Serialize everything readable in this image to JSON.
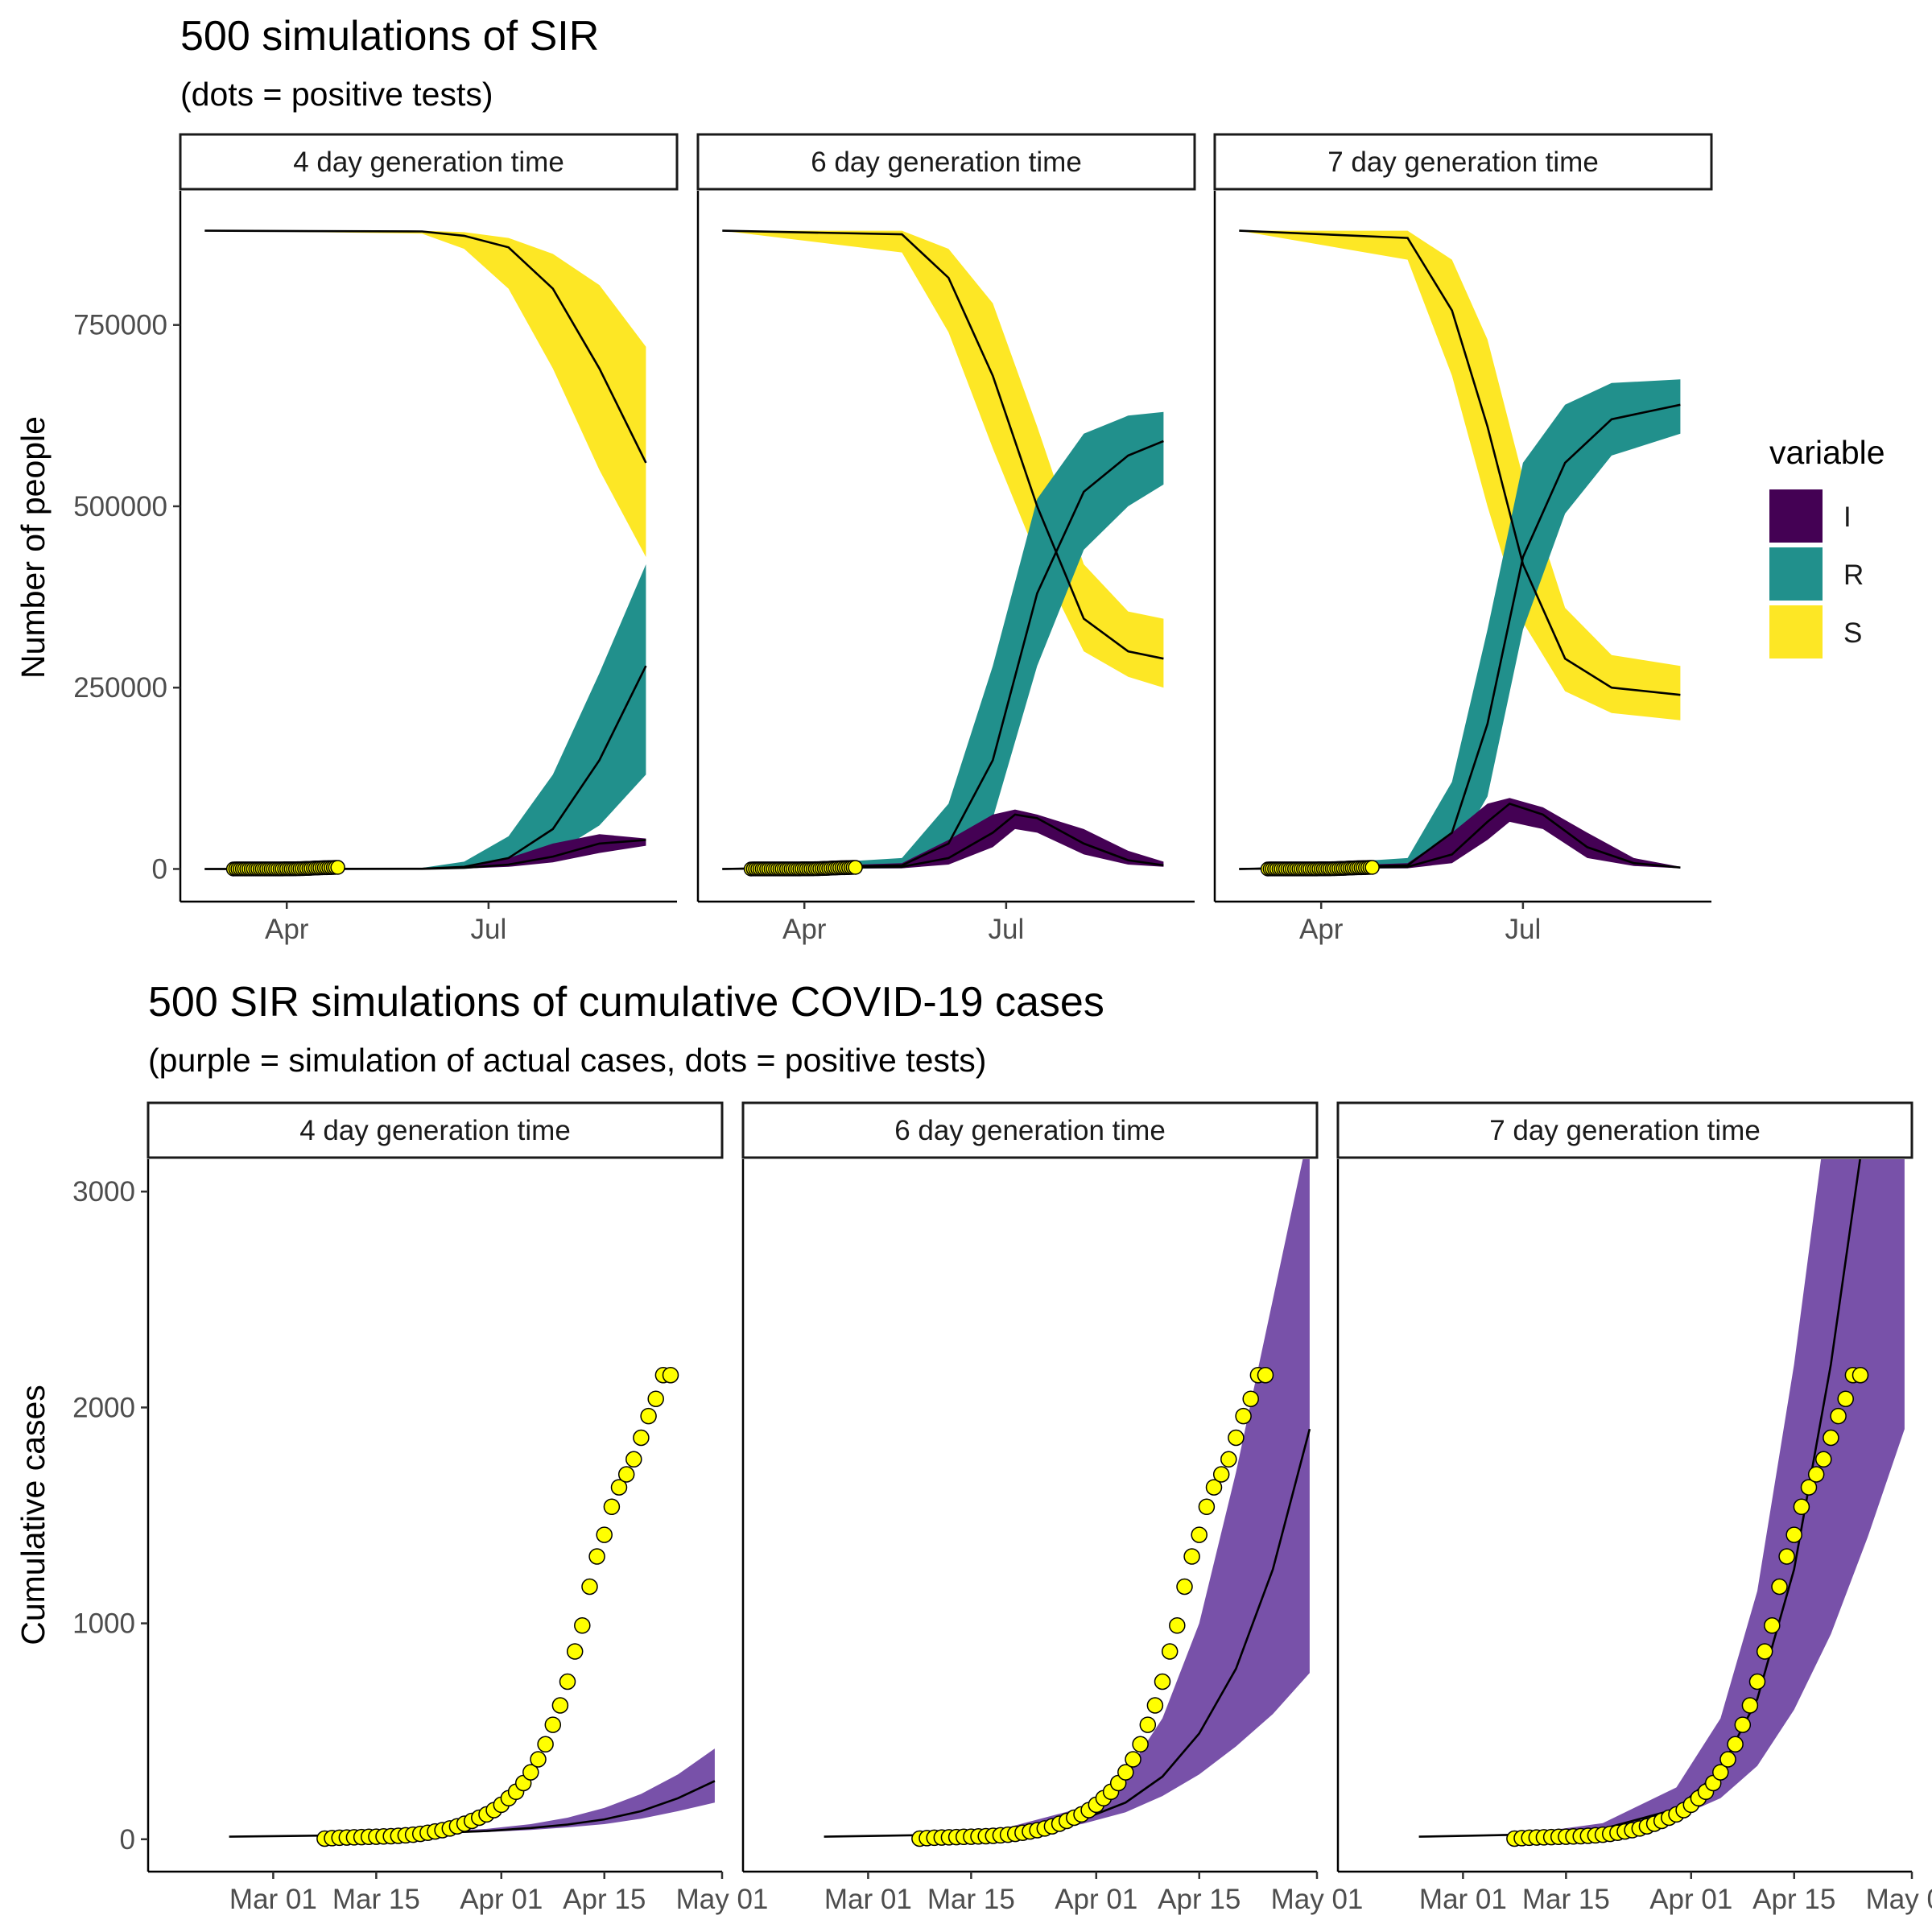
{
  "chart_data": [
    {
      "type": "area",
      "title": "500 simulations of SIR",
      "subtitle": "(dots = positive tests)",
      "ylabel": "Number of people",
      "xlabel": "",
      "ylim": [
        -45000,
        935000
      ],
      "y_ticks": [
        0,
        250000,
        500000,
        750000
      ],
      "y_tick_labels": [
        "0",
        "250000",
        "500000",
        "750000"
      ],
      "x_ticks": [
        {
          "date": "2020-04-01",
          "label": "Apr"
        },
        {
          "date": "2020-07-01",
          "label": "Jul"
        }
      ],
      "xlim": [
        "2020-02-13",
        "2020-09-24"
      ],
      "legend": {
        "title": "variable",
        "position": "right",
        "entries": [
          "I",
          "R",
          "S"
        ]
      },
      "colors": {
        "I": "#440154",
        "R": "#21908C",
        "S": "#FDE725",
        "dots": "#FFFF00",
        "median_line": "#000000"
      },
      "panels": [
        {
          "strip": "4 day generation time",
          "series": [
            {
              "name": "S",
              "x": [
                "2020-02-24",
                "2020-06-01",
                "2020-06-20",
                "2020-07-10",
                "2020-07-30",
                "2020-08-20",
                "2020-09-10"
              ],
              "median": [
                880000,
                879000,
                873000,
                857000,
                800000,
                690000,
                560000
              ],
              "low": [
                880000,
                876000,
                855000,
                800000,
                690000,
                550000,
                430000
              ],
              "high": [
                880000,
                880000,
                878000,
                870000,
                848000,
                805000,
                720000
              ]
            },
            {
              "name": "R",
              "x": [
                "2020-02-24",
                "2020-06-01",
                "2020-06-20",
                "2020-07-10",
                "2020-07-30",
                "2020-08-20",
                "2020-09-10"
              ],
              "median": [
                0,
                300,
                3000,
                15000,
                55000,
                150000,
                280000
              ],
              "low": [
                0,
                100,
                800,
                5000,
                20000,
                60000,
                130000
              ],
              "high": [
                0,
                1500,
                10000,
                45000,
                130000,
                270000,
                420000
              ]
            },
            {
              "name": "I",
              "x": [
                "2020-02-24",
                "2020-06-01",
                "2020-06-20",
                "2020-07-10",
                "2020-07-30",
                "2020-08-20",
                "2020-09-10"
              ],
              "median": [
                0,
                200,
                1500,
                6000,
                17000,
                35000,
                40000
              ],
              "low": [
                0,
                50,
                500,
                3000,
                9000,
                22000,
                32000
              ],
              "high": [
                0,
                600,
                4000,
                15000,
                35000,
                48000,
                42000
              ]
            }
          ]
        },
        {
          "strip": "6 day generation time",
          "series": [
            {
              "name": "S",
              "x": [
                "2020-02-24",
                "2020-05-15",
                "2020-06-05",
                "2020-06-25",
                "2020-07-15",
                "2020-08-05",
                "2020-08-25",
                "2020-09-10"
              ],
              "median": [
                880000,
                875000,
                815000,
                680000,
                500000,
                345000,
                300000,
                290000
              ],
              "low": [
                880000,
                850000,
                740000,
                580000,
                430000,
                300000,
                265000,
                250000
              ],
              "high": [
                880000,
                880000,
                855000,
                780000,
                610000,
                420000,
                355000,
                345000
              ]
            },
            {
              "name": "R",
              "x": [
                "2020-02-24",
                "2020-05-15",
                "2020-06-05",
                "2020-06-25",
                "2020-07-15",
                "2020-08-05",
                "2020-08-25",
                "2020-09-10"
              ],
              "median": [
                0,
                5000,
                35000,
                150000,
                380000,
                520000,
                570000,
                590000
              ],
              "low": [
                0,
                1000,
                10000,
                70000,
                280000,
                440000,
                500000,
                530000
              ],
              "high": [
                0,
                15000,
                90000,
                280000,
                510000,
                600000,
                625000,
                630000
              ]
            },
            {
              "name": "I",
              "x": [
                "2020-02-24",
                "2020-05-15",
                "2020-06-05",
                "2020-06-25",
                "2020-07-05",
                "2020-07-15",
                "2020-08-05",
                "2020-08-25",
                "2020-09-10"
              ],
              "median": [
                0,
                3000,
                15000,
                50000,
                75000,
                70000,
                35000,
                12000,
                5000
              ],
              "low": [
                0,
                1000,
                6000,
                30000,
                55000,
                50000,
                20000,
                6000,
                3000
              ],
              "high": [
                0,
                8000,
                40000,
                75000,
                82000,
                75000,
                55000,
                25000,
                10000
              ]
            }
          ]
        },
        {
          "strip": "7 day generation time",
          "series": [
            {
              "name": "S",
              "x": [
                "2020-02-24",
                "2020-05-10",
                "2020-05-30",
                "2020-06-15",
                "2020-07-01",
                "2020-07-20",
                "2020-08-10",
                "2020-09-10"
              ],
              "median": [
                880000,
                870000,
                770000,
                610000,
                420000,
                290000,
                250000,
                240000
              ],
              "low": [
                880000,
                840000,
                680000,
                500000,
                340000,
                245000,
                215000,
                205000
              ],
              "high": [
                880000,
                880000,
                840000,
                730000,
                540000,
                360000,
                295000,
                280000
              ]
            },
            {
              "name": "R",
              "x": [
                "2020-02-24",
                "2020-05-10",
                "2020-05-30",
                "2020-06-15",
                "2020-07-01",
                "2020-07-20",
                "2020-08-10",
                "2020-09-10"
              ],
              "median": [
                0,
                5000,
                50000,
                200000,
                430000,
                560000,
                620000,
                640000
              ],
              "low": [
                0,
                1000,
                15000,
                100000,
                330000,
                490000,
                570000,
                600000
              ],
              "high": [
                0,
                15000,
                120000,
                330000,
                560000,
                640000,
                670000,
                675000
              ]
            },
            {
              "name": "I",
              "x": [
                "2020-02-24",
                "2020-05-10",
                "2020-05-30",
                "2020-06-15",
                "2020-06-25",
                "2020-07-10",
                "2020-07-30",
                "2020-08-20",
                "2020-09-10"
              ],
              "median": [
                0,
                3000,
                20000,
                65000,
                90000,
                75000,
                30000,
                8000,
                2000
              ],
              "low": [
                0,
                1000,
                8000,
                40000,
                65000,
                55000,
                15000,
                4000,
                1000
              ],
              "high": [
                0,
                8000,
                50000,
                90000,
                98000,
                85000,
                50000,
                15000,
                3000
              ]
            }
          ]
        }
      ]
    },
    {
      "type": "area",
      "title": "500 SIR simulations of cumulative COVID-19 cases",
      "subtitle": "(purple = simulation of actual cases, dots = positive tests)",
      "ylabel": "Cumulative cases",
      "xlabel": "",
      "ylim": [
        -150,
        3150
      ],
      "y_ticks": [
        0,
        1000,
        2000,
        3000
      ],
      "y_tick_labels": [
        "0",
        "1000",
        "2000",
        "3000"
      ],
      "x_ticks": [
        {
          "date": "2020-03-01",
          "label": "Mar 01"
        },
        {
          "date": "2020-03-15",
          "label": "Mar 15"
        },
        {
          "date": "2020-04-01",
          "label": "Apr 01"
        },
        {
          "date": "2020-04-15",
          "label": "Apr 15"
        },
        {
          "date": "2020-05-01",
          "label": "May 01"
        }
      ],
      "xlim": [
        "2020-02-13",
        "2020-05-01"
      ],
      "colors": {
        "band": "#7851A9",
        "dots": "#FFFF00",
        "median_line": "#000000"
      },
      "positive_tests": {
        "x": [
          "2020-03-08",
          "2020-03-09",
          "2020-03-10",
          "2020-03-11",
          "2020-03-12",
          "2020-03-13",
          "2020-03-14",
          "2020-03-15",
          "2020-03-16",
          "2020-03-17",
          "2020-03-18",
          "2020-03-19",
          "2020-03-20",
          "2020-03-21",
          "2020-03-22",
          "2020-03-23",
          "2020-03-24",
          "2020-03-25",
          "2020-03-26",
          "2020-03-27",
          "2020-03-28",
          "2020-03-29",
          "2020-03-30",
          "2020-03-31",
          "2020-04-01",
          "2020-04-02",
          "2020-04-03",
          "2020-04-04",
          "2020-04-05",
          "2020-04-06",
          "2020-04-07",
          "2020-04-08",
          "2020-04-09",
          "2020-04-10",
          "2020-04-11",
          "2020-04-12",
          "2020-04-13",
          "2020-04-14",
          "2020-04-15",
          "2020-04-16",
          "2020-04-17",
          "2020-04-18",
          "2020-04-19",
          "2020-04-20",
          "2020-04-21",
          "2020-04-22",
          "2020-04-23",
          "2020-04-24"
        ],
        "y": [
          3,
          5,
          7,
          8,
          9,
          10,
          11,
          12,
          13,
          14,
          16,
          18,
          21,
          25,
          30,
          36,
          42,
          50,
          60,
          72,
          85,
          100,
          115,
          135,
          160,
          190,
          220,
          260,
          310,
          370,
          440,
          530,
          620,
          730,
          870,
          990,
          1170,
          1310,
          1410,
          1540,
          1630,
          1690,
          1760,
          1860,
          1960,
          2040,
          2150,
          2150
        ]
      },
      "panels": [
        {
          "strip": "4 day generation time",
          "x": [
            "2020-02-24",
            "2020-03-10",
            "2020-03-20",
            "2020-03-30",
            "2020-04-05",
            "2020-04-10",
            "2020-04-15",
            "2020-04-20",
            "2020-04-25",
            "2020-04-30"
          ],
          "median": [
            12,
            18,
            25,
            38,
            52,
            68,
            92,
            130,
            190,
            270
          ],
          "low": [
            12,
            17,
            23,
            33,
            43,
            55,
            70,
            95,
            130,
            170
          ],
          "high": [
            12,
            20,
            30,
            48,
            70,
            100,
            145,
            210,
            300,
            420
          ]
        },
        {
          "strip": "6 day generation time",
          "x": [
            "2020-02-24",
            "2020-03-10",
            "2020-03-20",
            "2020-03-30",
            "2020-04-05",
            "2020-04-10",
            "2020-04-15",
            "2020-04-20",
            "2020-04-25",
            "2020-04-30"
          ],
          "median": [
            12,
            20,
            38,
            90,
            170,
            290,
            490,
            790,
            1250,
            1900
          ],
          "low": [
            12,
            18,
            32,
            70,
            125,
            200,
            300,
            430,
            580,
            770
          ],
          "high": [
            12,
            24,
            55,
            145,
            300,
            560,
            1000,
            1700,
            2500,
            3300
          ]
        },
        {
          "strip": "7 day generation time",
          "x": [
            "2020-02-24",
            "2020-03-10",
            "2020-03-20",
            "2020-03-30",
            "2020-04-05",
            "2020-04-10",
            "2020-04-15",
            "2020-04-20",
            "2020-04-25",
            "2020-04-30"
          ],
          "median": [
            12,
            22,
            48,
            140,
            320,
            650,
            1250,
            2200,
            3400,
            4800
          ],
          "low": [
            12,
            20,
            40,
            100,
            190,
            340,
            600,
            950,
            1400,
            1900
          ],
          "high": [
            12,
            28,
            75,
            240,
            560,
            1150,
            2200,
            3500,
            4800,
            6000
          ]
        }
      ]
    }
  ]
}
